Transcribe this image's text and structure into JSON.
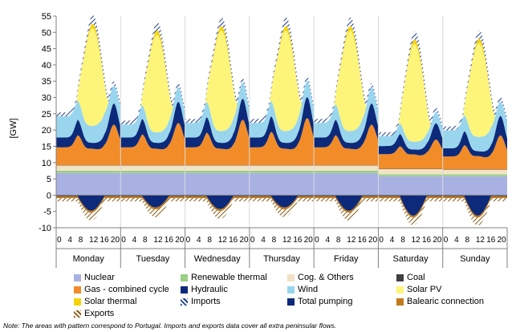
{
  "chart_data": {
    "type": "area",
    "ylabel": "[GW]",
    "ylim": [
      -10,
      55
    ],
    "yticks": [
      -10,
      -5,
      0,
      5,
      10,
      15,
      20,
      25,
      30,
      35,
      40,
      45,
      50,
      55
    ],
    "hour_ticks": [
      "0",
      "4",
      "8",
      "12",
      "16",
      "20"
    ],
    "days": [
      "Monday",
      "Tuesday",
      "Wednesday",
      "Thursday",
      "Friday",
      "Saturday",
      "Sunday"
    ],
    "day_totals": [
      50,
      50,
      54,
      53,
      53,
      49,
      46
    ],
    "solar_factor": [
      1.0,
      1.0,
      1.03,
      1.03,
      1.03,
      1.0,
      0.96
    ],
    "series": [
      {
        "name": "Nuclear",
        "color": "#a9b1e3",
        "values_by_day": [
          6.8,
          6.8,
          6.8,
          6.8,
          6.8,
          5.8,
          5.8
        ]
      },
      {
        "name": "Renewable thermal",
        "color": "#9acf84",
        "values_by_day": [
          0.7,
          0.7,
          0.7,
          0.7,
          0.7,
          0.6,
          0.6
        ]
      },
      {
        "name": "Cog. & Others",
        "color": "#f2e3c6",
        "values_by_day": [
          1.6,
          1.6,
          1.6,
          1.6,
          1.6,
          1.6,
          1.4
        ]
      },
      {
        "name": "Coal",
        "color": "#404040",
        "values_by_day": [
          0.1,
          0.1,
          0.1,
          0.1,
          0.1,
          0.1,
          0.1
        ]
      },
      {
        "name": "Gas - combined cycle",
        "color": "#f28c28",
        "night": [
          5.5,
          5.5,
          5.5,
          5.5,
          5.5,
          4.5,
          4.0
        ],
        "evening": [
          12.5,
          13.0,
          14.0,
          14.5,
          12.5,
          9.0,
          10.5
        ]
      },
      {
        "name": "Hydraulic",
        "color": "#0d2a7a",
        "night": [
          3.0,
          3.0,
          3.0,
          3.0,
          3.0,
          2.5,
          2.5
        ],
        "evening": [
          6.5,
          6.5,
          6.5,
          6.5,
          6.5,
          5.0,
          6.0
        ]
      },
      {
        "name": "Wind",
        "color": "#99d6ee",
        "night": [
          6.5,
          4.0,
          4.5,
          4.5,
          4.5,
          3.0,
          5.5
        ],
        "evening": [
          5.5,
          4.5,
          5.0,
          5.0,
          5.0,
          3.5,
          4.5
        ]
      },
      {
        "name": "Solar PV",
        "color": "#fdf57a",
        "peak": 30
      },
      {
        "name": "Solar thermal",
        "color": "#f5d30a",
        "peak": 1.5
      },
      {
        "name": "Imports",
        "color": "#1f3d8f",
        "pattern": "hatch"
      },
      {
        "name": "Total pumping",
        "color": "#0d2a7a",
        "negative": true
      },
      {
        "name": "Balearic connection",
        "color": "#c27a1a",
        "negative": true
      },
      {
        "name": "Exports",
        "color": "#b07a20",
        "pattern": "hatch",
        "negative": true
      }
    ]
  },
  "note": "Note: The areas with pattern correspond to Portugal. Imports and exports data cover all extra peninsular flows."
}
